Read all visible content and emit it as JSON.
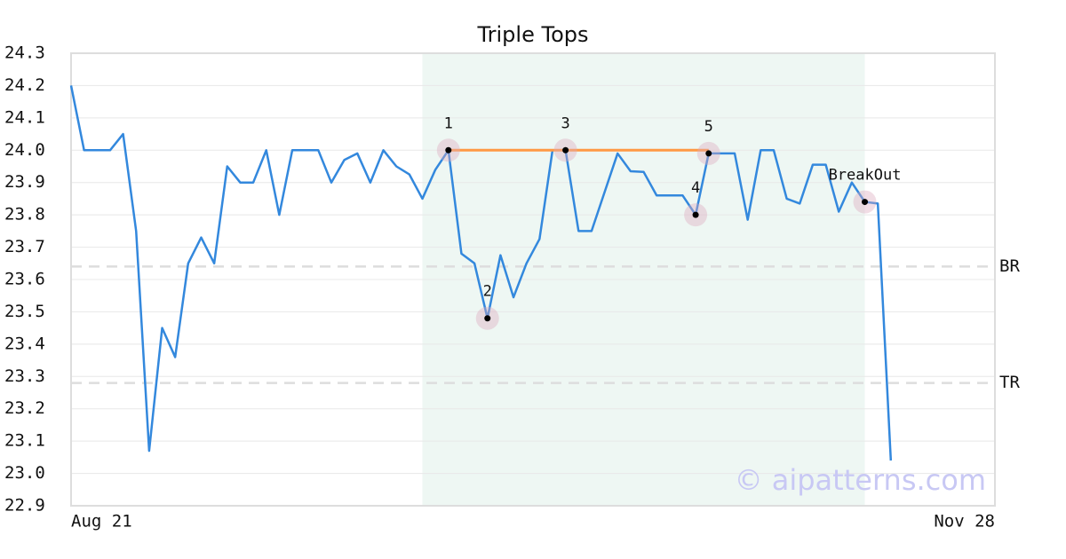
{
  "chart_data": {
    "type": "line",
    "title": "Triple Tops",
    "categories": [
      "Aug 21",
      null,
      null,
      null,
      null,
      null,
      null,
      null,
      null,
      null,
      null,
      null,
      null,
      null,
      null,
      null,
      null,
      null,
      null,
      null,
      null,
      null,
      null,
      null,
      null,
      null,
      null,
      null,
      null,
      null,
      null,
      null,
      null,
      null,
      null,
      null,
      null,
      null,
      null,
      null,
      null,
      null,
      null,
      null,
      null,
      null,
      null,
      null,
      null,
      null,
      null,
      null,
      null,
      null,
      null,
      null,
      null,
      null,
      null,
      null,
      null,
      null,
      null,
      null,
      null,
      null,
      null,
      null,
      null,
      null,
      null,
      "Nov 28"
    ],
    "series": [
      {
        "color": "#3388dd",
        "values": [
          24.2,
          24.0,
          24.0,
          24.0,
          24.05,
          23.75,
          23.07,
          23.45,
          23.36,
          23.65,
          23.73,
          23.65,
          23.95,
          23.9,
          23.9,
          24.0,
          23.8,
          24.0,
          24.0,
          24.0,
          23.9,
          23.97,
          23.99,
          23.9,
          24.0,
          23.95,
          23.925,
          23.85,
          23.94,
          24.0,
          23.68,
          23.65,
          23.48,
          23.675,
          23.545,
          23.65,
          23.725,
          24.0,
          24.0,
          23.75,
          23.75,
          23.87,
          23.99,
          23.935,
          23.933,
          23.86,
          23.86,
          23.86,
          23.8,
          23.99,
          23.99,
          23.99,
          23.785,
          24.0,
          24.0,
          23.85,
          23.835,
          23.955,
          23.955,
          23.81,
          23.9,
          23.84,
          23.835,
          23.04,
          null,
          null,
          null,
          null,
          null,
          null,
          null,
          null
        ]
      }
    ],
    "ylim": [
      22.9,
      24.3
    ],
    "yticks": [
      22.9,
      {
        "value": 23,
        "label": "23.0"
      },
      23.1,
      23.2,
      23.3,
      23.4,
      23.5,
      23.6,
      23.7,
      23.8,
      23.9,
      {
        "value": 24,
        "label": "24.0"
      },
      24.1,
      24.2,
      24.3
    ],
    "grid": true,
    "highlight": {
      "from": 27,
      "to": 61,
      "color": "#eef7f3"
    },
    "resistance": {
      "from": 29,
      "to": 49,
      "value": 24.0,
      "color": "#ff9944"
    },
    "points": [
      {
        "label": "1",
        "index": 29,
        "value": 24.0
      },
      {
        "label": "2",
        "index": 32,
        "value": 23.48
      },
      {
        "label": "3",
        "index": 38,
        "value": 24.0
      },
      {
        "label": "4",
        "index": 48,
        "value": 23.8
      },
      {
        "label": "5",
        "index": 49,
        "value": 23.99
      },
      {
        "label": "BreakOut",
        "index": 61,
        "value": 23.84
      }
    ],
    "reference_lines": [
      {
        "label": "BR",
        "value": 23.64
      },
      {
        "label": "TR",
        "value": 23.28
      }
    ],
    "watermark": "© aipatterns.com"
  }
}
